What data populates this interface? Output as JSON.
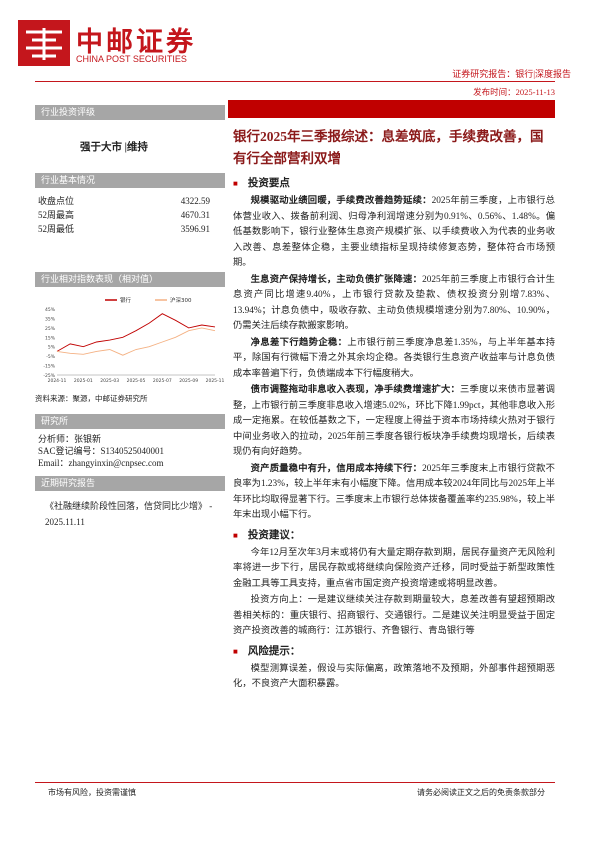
{
  "header": {
    "logo_cn": "中邮证券",
    "logo_en": "CHINA POST SECURITIES",
    "report_type": "证券研究报告：银行|深度报告",
    "date": "发布时间：2025-11-13"
  },
  "sidebar": {
    "rating_title": "行业投资评级",
    "rating": "强于大市 |维持",
    "basics_title": "行业基本情况",
    "basics": [
      [
        "收盘点位",
        "4322.59"
      ],
      [
        "52周最高",
        "4670.31"
      ],
      [
        "52周最低",
        "3596.91"
      ]
    ],
    "chart_title": "行业相对指数表现（相对值）",
    "chart_data": {
      "type": "line",
      "categories": [
        "2024-11",
        null,
        "2025-01",
        null,
        "2025-03",
        null,
        "2025-05",
        null,
        "2025-07",
        null,
        "2025-09",
        null,
        "2025-11"
      ],
      "series": [
        {
          "name": "银行",
          "color": "#c00000",
          "values": [
            0,
            8,
            5,
            10,
            12,
            15,
            22,
            30,
            40,
            33,
            25,
            28,
            26
          ]
        },
        {
          "name": "沪深300",
          "color": "#f4b183",
          "values": [
            0,
            -2,
            -3,
            0,
            2,
            -4,
            2,
            5,
            10,
            15,
            22,
            25,
            22
          ]
        }
      ],
      "ylim": [
        -25,
        45
      ],
      "yticks": [
        {
          "value": -25,
          "label": "-25%"
        },
        {
          "value": -15,
          "label": "-15%"
        },
        {
          "value": -5,
          "label": "-5%"
        },
        {
          "value": 5,
          "label": "5%"
        },
        {
          "value": 15,
          "label": "15%"
        },
        {
          "value": 25,
          "label": "25%"
        },
        {
          "value": 35,
          "label": "35%"
        },
        {
          "value": 45,
          "label": "45%"
        }
      ]
    },
    "source": "资料来源：聚源，中邮证券研究所",
    "researcher_title": "研究所",
    "researcher": [
      "分析师：张银新",
      "SAC登记编号：S1340525040001",
      "Email：zhangyinxin@cnpsec.com"
    ],
    "recent_title": "近期研究报告",
    "recent": [
      "《社融继续阶段性回落，信贷同比少增》 - 2025.11.11"
    ]
  },
  "main": {
    "title": "银行2025年三季报综述：息差筑底，手续费改善，国有行全部营利双增",
    "sections": [
      {
        "heading": "投资要点",
        "paragraphs": [
          {
            "lead": "规模驱动业绩回暖，手续费改善趋势延续：",
            "text": "2025年前三季度，上市银行总体营业收入、拨备前利润、归母净利润增速分别为0.91%、0.56%、1.48%。偏低基数影响下，银行业整体生息资产规模扩张、以手续费收入为代表的业务收入改善、息差整体企稳，主要业绩指标呈现持续修复态势，整体符合市场预期。"
          },
          {
            "lead": "生息资产保持增长，主动负债扩张降速：",
            "text": "2025年前三季度上市银行合计生息资产同比增速9.40%，上市银行贷款及垫款、债权投资分别增7.83%、13.94%；计息负债中，吸收存款、主动负债规模增速分别为7.80%、10.90%，仍需关注后续存款搬家影响。"
          },
          {
            "lead": "净息差下行趋势企稳：",
            "text": "上市银行前三季度净息差1.35%，与上半年基本持平，除国有行微幅下滑之外其余均企稳。各类银行生息资产收益率与计息负债成本率普遍下行，负债端成本下行幅度稍大。"
          },
          {
            "lead": "债市调整拖动非息收入表现，净手续费增速扩大：",
            "text": "三季度以来债市显著调整，上市银行前三季度非息收入增速5.02%，环比下降1.99pct，其他非息收入形成一定拖累。在较低基数之下，一定程度上得益于资本市场持续火热对于银行中间业务收入的拉动，2025年前三季度各银行板块净手续费均现增长，后续表现仍有向好趋势。"
          },
          {
            "lead": "资产质量稳中有升，信用成本持续下行：",
            "text": "2025年三季度末上市银行贷款不良率为1.23%，较上半年末有小幅度下降。信用成本较2024年同比与2025年上半年环比均取得显著下行。三季度末上市银行总体拨备覆盖率约235.98%，较上半年末出现小幅下行。"
          }
        ]
      },
      {
        "heading": "投资建议：",
        "paragraphs": [
          {
            "text": "今年12月至次年3月末或将仍有大量定期存款到期，居民存量资产无风险利率将进一步下行，居民存款或将继续向保险资产迁移，同时受益于新型政策性金融工具等工具支持，重点省市国定资产投资增速或将明显改善。"
          },
          {
            "text": "投资方向上：一是建议继续关注存款到期量较大，息差改善有望超预期改善相关标的：重庆银行、招商银行、交通银行。二是建议关注明显受益于固定资产投资改善的城商行：江苏银行、齐鲁银行、青岛银行等"
          }
        ]
      },
      {
        "heading": "风险提示：",
        "paragraphs": [
          {
            "text": "模型测算误差，假设与实际偏离，政策落地不及预期，外部事件超预期恶化，不良资产大面积暴露。"
          }
        ]
      }
    ]
  },
  "footer": {
    "left": "市场有风险，投资需谨慎",
    "right": "请务必阅读正文之后的免责条款部分"
  }
}
